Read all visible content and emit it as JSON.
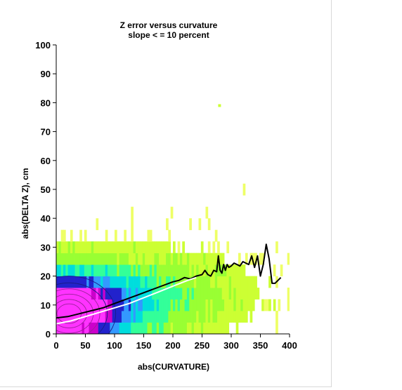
{
  "chart_data": {
    "type": "heatmap",
    "title": "Z error versus curvature",
    "subtitle": "slope < = 10 percent",
    "xlabel": "abs(CURVATURE)",
    "ylabel": "abs(DELTA Z), cm",
    "xlim": [
      0,
      400
    ],
    "ylim": [
      0,
      100
    ],
    "x_ticks": [
      0,
      50,
      100,
      150,
      200,
      250,
      300,
      350,
      400
    ],
    "y_ticks": [
      0,
      10,
      20,
      30,
      40,
      50,
      60,
      70,
      80,
      90,
      100
    ],
    "grid": false,
    "colormap": [
      "#ff33ff",
      "#cc00cc",
      "#2222cc",
      "#3399ff",
      "#00dddd",
      "#33ff99",
      "#99ff33",
      "#ccff33",
      "#eeff66"
    ],
    "series": [
      {
        "type": "line",
        "color": "#000000",
        "x": [
          0,
          20,
          40,
          60,
          80,
          100,
          120,
          140,
          160,
          180,
          200,
          210,
          220,
          230,
          240,
          250,
          255,
          260,
          265,
          270,
          275,
          278,
          281,
          284,
          287,
          290,
          293,
          296,
          300,
          305,
          310,
          315,
          320,
          325,
          330,
          335,
          340,
          345,
          350,
          355,
          360,
          365,
          370,
          375,
          385
        ],
        "y": [
          5.5,
          6,
          7,
          8,
          9,
          10.5,
          12,
          13.5,
          15,
          16.5,
          18,
          18.5,
          19.5,
          19,
          20,
          20.5,
          22,
          20.5,
          20,
          22,
          21.5,
          27,
          22,
          21,
          24,
          22,
          24,
          23,
          23.5,
          24.5,
          24,
          23.5,
          25,
          24.5,
          24,
          27,
          23,
          27,
          20,
          24,
          31,
          26,
          17.5,
          17.5,
          19.5
        ]
      },
      {
        "type": "line",
        "color": "#ffffff",
        "x": [
          0,
          25,
          50,
          75,
          100,
          125,
          150,
          175,
          200,
          225,
          240
        ],
        "y": [
          3.5,
          4.5,
          6,
          7.5,
          9,
          10.5,
          12.5,
          14.5,
          16.5,
          18.5,
          19.5
        ]
      }
    ],
    "outliers": [
      {
        "x": 280,
        "y": 79
      }
    ]
  }
}
